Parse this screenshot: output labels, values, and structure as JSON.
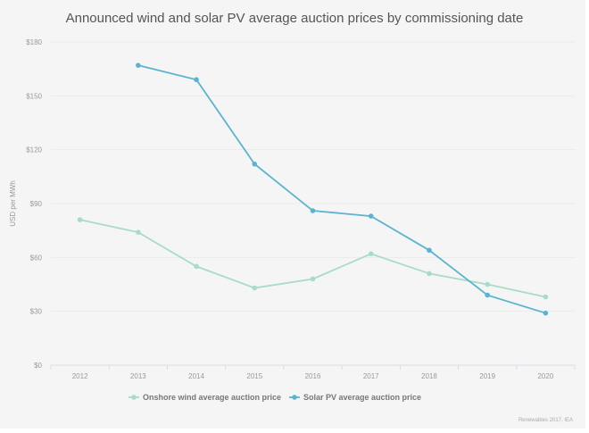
{
  "chart_data": {
    "type": "line",
    "title": "Announced wind and solar PV average auction prices by commissioning date",
    "xlabel": "",
    "ylabel": "USD per MWh",
    "categories": [
      "2012",
      "2013",
      "2014",
      "2015",
      "2016",
      "2017",
      "2018",
      "2019",
      "2020"
    ],
    "yticks": [
      "$0",
      "$30",
      "$60",
      "$90",
      "$120",
      "$150",
      "$180"
    ],
    "ylim": [
      0,
      180
    ],
    "grid": true,
    "legend": "bottom",
    "series": [
      {
        "name": "Onshore wind average auction price",
        "color": "#a8dcc8",
        "values": [
          81,
          74,
          55,
          43,
          48,
          62,
          51,
          45,
          38
        ]
      },
      {
        "name": "Solar PV average auction price",
        "color": "#5bb4cf",
        "values": [
          null,
          167,
          159,
          112,
          86,
          83,
          64,
          39,
          29
        ]
      }
    ],
    "source": "Renewables 2017, IEA"
  }
}
